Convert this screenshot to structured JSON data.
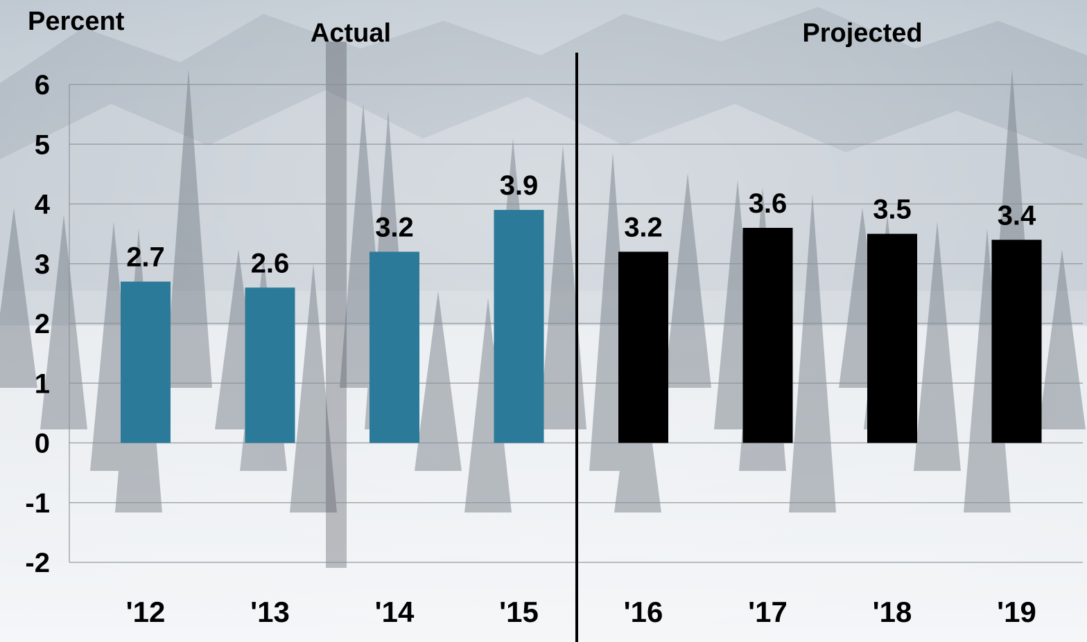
{
  "chart_data": {
    "type": "bar",
    "ylabel": "Percent",
    "ylim": [
      -2,
      6
    ],
    "yticks": [
      6,
      5,
      4,
      3,
      2,
      1,
      0,
      -1,
      -2
    ],
    "grid": true,
    "categories": [
      "'12",
      "'13",
      "'14",
      "'15",
      "'16",
      "'17",
      "'18",
      "'19"
    ],
    "values": [
      2.7,
      2.6,
      3.2,
      3.9,
      3.2,
      3.6,
      3.5,
      3.4
    ],
    "data_labels": [
      "2.7",
      "2.6",
      "3.2",
      "3.9",
      "3.2",
      "3.6",
      "3.5",
      "3.4"
    ],
    "groups": [
      {
        "label": "Actual",
        "start": 0,
        "end": 3,
        "color": "#2b7a9a"
      },
      {
        "label": "Projected",
        "start": 4,
        "end": 7,
        "color": "#000000"
      }
    ],
    "background": "snowy-forest-photo"
  }
}
